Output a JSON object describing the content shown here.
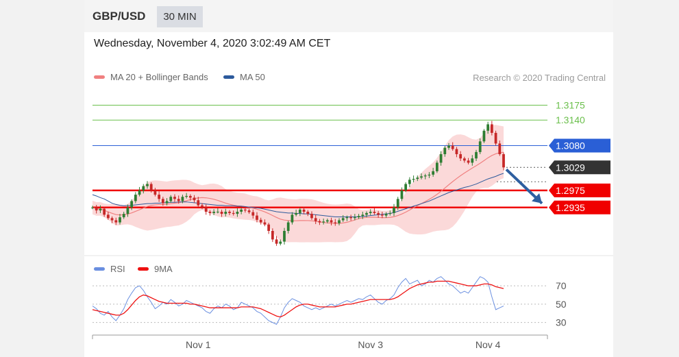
{
  "header": {
    "symbol": "GBP/USD",
    "timeframe": "30 MIN"
  },
  "datetime": "Wednesday, November 4, 2020 3:02:49 AM CET",
  "credit": "Research © 2020 Trading Central",
  "colors": {
    "ma20": "#f08080",
    "ma50": "#2c5a9c",
    "bands_fill": "#fbd9d9",
    "up_candle": "#2e7d32",
    "down_candle": "#c62828",
    "green_level": "#6abf4b",
    "blue_level": "#2a5fd6",
    "current_level": "#333333",
    "red_level": "#f00000",
    "rsi": "#6a8fe0",
    "rsi_ma": "#ee1111",
    "arrow": "#2e5fa0"
  },
  "chart_data": [
    {
      "type": "candlestick",
      "title": "GBP/USD",
      "legend": [
        {
          "name": "MA 20 + Bollinger Bands",
          "color": "#f08080"
        },
        {
          "name": "MA 50",
          "color": "#2c5a9c"
        }
      ],
      "legend_position": "top-left",
      "y_range": [
        1.2835,
        1.3195
      ],
      "x_ticks": [
        "Nov 1",
        "Nov 3",
        "Nov 4"
      ],
      "levels": [
        {
          "value": 1.3175,
          "label": "1.3175",
          "style": "thin-line",
          "color": "#6abf4b"
        },
        {
          "value": 1.314,
          "label": "1.3140",
          "style": "thin-line",
          "color": "#6abf4b"
        },
        {
          "value": 1.308,
          "label": "1.3080",
          "style": "flag",
          "color": "#2a5fd6"
        },
        {
          "value": 1.3029,
          "label": "1.3029",
          "style": "current",
          "color": "#333333"
        },
        {
          "value": 1.2975,
          "label": "1.2975",
          "style": "flag",
          "color": "#f00000"
        },
        {
          "value": 1.2935,
          "label": "1.2935",
          "style": "flag",
          "color": "#f00000"
        }
      ],
      "close": [
        1.2935,
        1.2928,
        1.2932,
        1.2918,
        1.291,
        1.2905,
        1.29,
        1.2912,
        1.292,
        1.2935,
        1.295,
        1.2965,
        1.2975,
        1.2985,
        1.299,
        1.2975,
        1.2965,
        1.2955,
        1.2945,
        1.295,
        1.296,
        1.2955,
        1.295,
        1.296,
        1.2962,
        1.2958,
        1.2952,
        1.294,
        1.2935,
        1.2925,
        1.2922,
        1.2925,
        1.2925,
        1.292,
        1.2925,
        1.2922,
        1.292,
        1.2925,
        1.293,
        1.2928,
        1.2924,
        1.2916,
        1.2906,
        1.29,
        1.2895,
        1.288,
        1.286,
        1.285,
        1.2855,
        1.288,
        1.29,
        1.2918,
        1.2922,
        1.293,
        1.2925,
        1.292,
        1.291,
        1.2903,
        1.29,
        1.2902,
        1.2905,
        1.29,
        1.2898,
        1.2905,
        1.291,
        1.2912,
        1.291,
        1.2912,
        1.2915,
        1.2918,
        1.2922,
        1.2925,
        1.2922,
        1.2918,
        1.2916,
        1.292,
        1.2922,
        1.2935,
        1.2955,
        1.2975,
        1.299,
        1.3,
        1.3002,
        1.3005,
        1.3008,
        1.301,
        1.3012,
        1.302,
        1.304,
        1.306,
        1.3075,
        1.308,
        1.3072,
        1.306,
        1.305,
        1.3045,
        1.304,
        1.305,
        1.3065,
        1.309,
        1.3115,
        1.313,
        1.311,
        1.3085,
        1.306,
        1.3029
      ],
      "ma50": [
        1.2965,
        1.2962,
        1.2958,
        1.2955,
        1.295,
        1.2945,
        1.2942,
        1.294,
        1.2939,
        1.2939,
        1.294,
        1.2941,
        1.2942,
        1.2943,
        1.2944,
        1.2944,
        1.2945,
        1.2945,
        1.2946,
        1.2946,
        1.2947,
        1.2947,
        1.2948,
        1.2948,
        1.2948,
        1.2947,
        1.2946,
        1.2945,
        1.2944,
        1.2943,
        1.2942,
        1.2941,
        1.294,
        1.294,
        1.2939,
        1.2939,
        1.2939,
        1.2938,
        1.2938,
        1.2937,
        1.2936,
        1.2935,
        1.2934,
        1.2933,
        1.2931,
        1.2929,
        1.2927,
        1.2925,
        1.2924,
        1.2923,
        1.2922,
        1.2922,
        1.2921,
        1.2921,
        1.292,
        1.292,
        1.2919,
        1.2918,
        1.2917,
        1.2916,
        1.2915,
        1.2914,
        1.2913,
        1.2913,
        1.2913,
        1.2913,
        1.2913,
        1.2913,
        1.2913,
        1.2914,
        1.2915,
        1.2916,
        1.2917,
        1.2918,
        1.2919,
        1.292,
        1.2921,
        1.2923,
        1.2926,
        1.2929,
        1.2932,
        1.2935,
        1.2938,
        1.2941,
        1.2944,
        1.2947,
        1.295,
        1.2954,
        1.2958,
        1.2962,
        1.2966,
        1.297,
        1.2973,
        1.2976,
        1.2979,
        1.2982,
        1.2984,
        1.2987,
        1.299,
        1.2994,
        1.2998,
        1.3002,
        1.3005,
        1.3008,
        1.3012,
        1.3015
      ]
    },
    {
      "type": "line",
      "legend": [
        {
          "name": "RSI",
          "color": "#6a8fe0"
        },
        {
          "name": "9MA",
          "color": "#ee1111"
        }
      ],
      "legend_position": "top-left",
      "y_range": [
        20,
        85
      ],
      "y_ticks": [
        "70",
        "50",
        "30"
      ],
      "x_ticks": [
        "Nov 1",
        "Nov 3",
        "Nov 4"
      ],
      "series": [
        {
          "name": "RSI",
          "values": [
            48,
            45,
            40,
            38,
            42,
            36,
            32,
            38,
            45,
            55,
            62,
            68,
            70,
            65,
            58,
            52,
            45,
            48,
            52,
            50,
            55,
            52,
            48,
            50,
            54,
            52,
            50,
            48,
            46,
            42,
            40,
            45,
            48,
            46,
            50,
            48,
            44,
            46,
            52,
            50,
            48,
            46,
            42,
            40,
            36,
            32,
            30,
            28,
            36,
            46,
            52,
            56,
            54,
            52,
            48,
            46,
            44,
            46,
            44,
            46,
            48,
            50,
            48,
            50,
            52,
            54,
            52,
            54,
            56,
            55,
            58,
            60,
            56,
            52,
            50,
            54,
            56,
            60,
            68,
            74,
            78,
            72,
            74,
            76,
            70,
            72,
            76,
            74,
            78,
            80,
            76,
            72,
            70,
            66,
            62,
            64,
            62,
            68,
            74,
            80,
            78,
            74,
            58,
            44,
            46,
            48
          ]
        },
        {
          "name": "9MA",
          "values": [
            44,
            43,
            42,
            41,
            40,
            39,
            38,
            38,
            40,
            44,
            49,
            54,
            58,
            60,
            59,
            57,
            55,
            53,
            52,
            51,
            51,
            51,
            51,
            51,
            51,
            50,
            50,
            49,
            48,
            47,
            46,
            46,
            46,
            46,
            46,
            46,
            46,
            46,
            47,
            47,
            47,
            47,
            46,
            45,
            43,
            41,
            39,
            37,
            36,
            38,
            41,
            44,
            47,
            49,
            50,
            50,
            49,
            48,
            47,
            47,
            47,
            47,
            47,
            48,
            49,
            50,
            50,
            51,
            52,
            53,
            54,
            55,
            55,
            55,
            55,
            55,
            55,
            56,
            58,
            61,
            64,
            67,
            69,
            71,
            72,
            73,
            74,
            74,
            75,
            75,
            75,
            75,
            74,
            73,
            72,
            71,
            70,
            70,
            70,
            71,
            72,
            72,
            71,
            69,
            68,
            67
          ]
        }
      ]
    }
  ]
}
